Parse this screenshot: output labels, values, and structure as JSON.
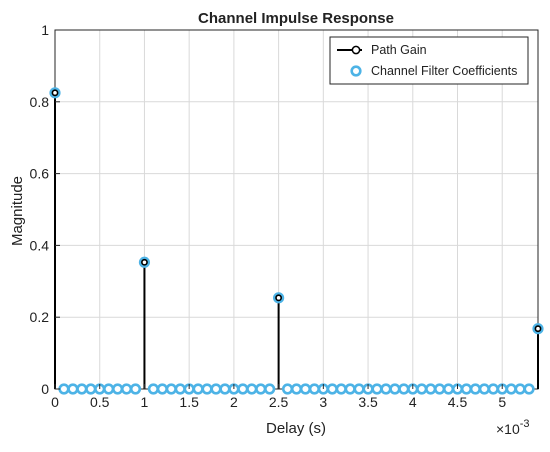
{
  "chart_data": {
    "type": "stem",
    "title": "Channel Impulse Response",
    "xlabel": "Delay (s)",
    "ylabel": "Magnitude",
    "x_exponent_label": "×10",
    "x_exponent_power": "-3",
    "xlim": [
      0,
      5.4
    ],
    "ylim": [
      0,
      1
    ],
    "xticks": [
      0,
      0.5,
      1,
      1.5,
      2,
      2.5,
      3,
      3.5,
      4,
      4.5,
      5
    ],
    "xtick_labels": [
      "0",
      "0.5",
      "1",
      "1.5",
      "2",
      "2.5",
      "3",
      "3.5",
      "4",
      "4.5",
      "5"
    ],
    "yticks": [
      0,
      0.2,
      0.4,
      0.6,
      0.8,
      1
    ],
    "ytick_labels": [
      "0",
      "0.2",
      "0.4",
      "0.6",
      "0.8",
      "1"
    ],
    "grid": true,
    "legend_position": "top-right",
    "series": [
      {
        "name": "Path Gain",
        "color": "#000000",
        "marker": "circle",
        "x": [
          0,
          1,
          2.5,
          5.4
        ],
        "values": [
          0.825,
          0.353,
          0.254,
          0.168
        ]
      },
      {
        "name": "Channel Filter Coefficients",
        "color": "#4db3e6",
        "marker": "circle",
        "x": [
          0,
          0.1,
          0.2,
          0.3,
          0.4,
          0.5,
          0.6,
          0.7,
          0.8,
          0.9,
          1.0,
          1.1,
          1.2,
          1.3,
          1.4,
          1.5,
          1.6,
          1.7,
          1.8,
          1.9,
          2.0,
          2.1,
          2.2,
          2.3,
          2.4,
          2.5,
          2.6,
          2.7,
          2.8,
          2.9,
          3.0,
          3.1,
          3.2,
          3.3,
          3.4,
          3.5,
          3.6,
          3.7,
          3.8,
          3.9,
          4.0,
          4.1,
          4.2,
          4.3,
          4.4,
          4.5,
          4.6,
          4.7,
          4.8,
          4.9,
          5.0,
          5.1,
          5.2,
          5.3,
          5.4
        ],
        "values": [
          0.825,
          0,
          0,
          0,
          0,
          0,
          0,
          0,
          0,
          0,
          0.353,
          0,
          0,
          0,
          0,
          0,
          0,
          0,
          0,
          0,
          0,
          0,
          0,
          0,
          0,
          0.254,
          0,
          0,
          0,
          0,
          0,
          0,
          0,
          0,
          0,
          0,
          0,
          0,
          0,
          0,
          0,
          0,
          0,
          0,
          0,
          0,
          0,
          0,
          0,
          0,
          0,
          0,
          0,
          0,
          0.168
        ]
      }
    ]
  }
}
